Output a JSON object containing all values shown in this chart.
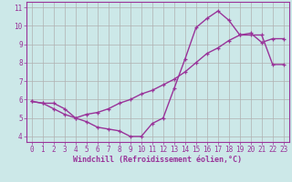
{
  "xlabel": "Windchill (Refroidissement éolien,°C)",
  "line1_x": [
    0,
    1,
    2,
    3,
    4,
    5,
    6,
    7,
    8,
    9,
    10,
    11,
    12,
    13,
    14,
    15,
    16,
    17,
    18,
    19,
    20,
    21,
    22,
    23
  ],
  "line1_y": [
    5.9,
    5.8,
    5.8,
    5.5,
    5.0,
    4.8,
    4.5,
    4.4,
    4.3,
    4.0,
    4.0,
    4.7,
    5.0,
    6.6,
    8.2,
    9.9,
    10.4,
    10.8,
    10.3,
    9.5,
    9.6,
    9.1,
    9.3,
    9.3
  ],
  "line2_x": [
    0,
    1,
    2,
    3,
    4,
    5,
    6,
    7,
    8,
    9,
    10,
    11,
    12,
    13,
    14,
    15,
    16,
    17,
    18,
    19,
    20,
    21,
    22,
    23
  ],
  "line2_y": [
    5.9,
    5.8,
    5.5,
    5.2,
    5.0,
    5.2,
    5.3,
    5.5,
    5.8,
    6.0,
    6.3,
    6.5,
    6.8,
    7.1,
    7.5,
    8.0,
    8.5,
    8.8,
    9.2,
    9.5,
    9.5,
    9.5,
    7.9,
    7.9
  ],
  "line_color": "#993399",
  "bg_color": "#cce8e8",
  "grid_color": "#b0b0b0",
  "xlim": [
    -0.5,
    23.5
  ],
  "ylim": [
    3.7,
    11.3
  ],
  "yticks": [
    4,
    5,
    6,
    7,
    8,
    9,
    10,
    11
  ],
  "xticks": [
    0,
    1,
    2,
    3,
    4,
    5,
    6,
    7,
    8,
    9,
    10,
    11,
    12,
    13,
    14,
    15,
    16,
    17,
    18,
    19,
    20,
    21,
    22,
    23
  ],
  "marker": "+",
  "markersize": 3.5,
  "linewidth": 1.0,
  "tick_fontsize": 5.5,
  "xlabel_fontsize": 6.0
}
